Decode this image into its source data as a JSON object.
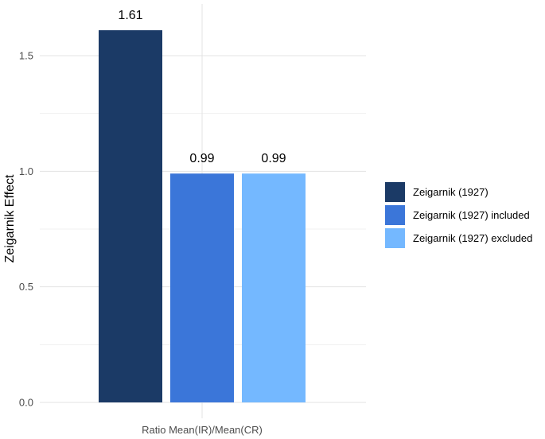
{
  "chart_data": {
    "type": "bar",
    "categories": [
      "Ratio Mean(IR)/Mean(CR)"
    ],
    "series": [
      {
        "name": "Zeigarnik (1927)",
        "values": [
          1.61
        ],
        "color": "#1b3a66"
      },
      {
        "name": "Zeigarnik (1927) included",
        "values": [
          0.99
        ],
        "color": "#3b76d9"
      },
      {
        "name": "Zeigarnik (1927) excluded",
        "values": [
          0.99
        ],
        "color": "#74b8ff"
      }
    ],
    "data_labels": [
      "1.61",
      "0.99",
      "0.99"
    ],
    "xlabel": "",
    "ylabel": "Zeigarnik Effect",
    "ylim": [
      0,
      1.7
    ],
    "yticks": [
      0.0,
      0.5,
      1.0,
      1.5
    ],
    "ytick_labels": [
      "0.0",
      "0.5",
      "1.0",
      "1.5"
    ],
    "grid": true,
    "legend_position": "right"
  }
}
